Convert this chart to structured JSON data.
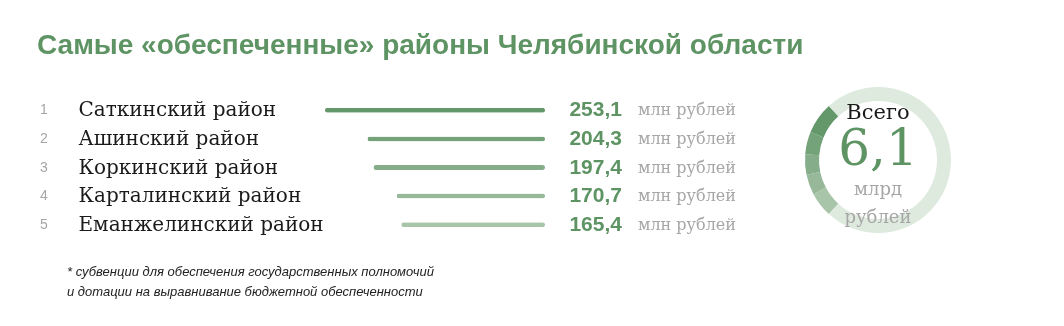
{
  "chart_data": [
    {
      "type": "bar",
      "orientation": "horizontal",
      "title": "Самые «обеспеченные» районы Челябинской области",
      "categories": [
        "Саткинский район",
        "Ашинский район",
        "Коркинский район",
        "Карталинский район",
        "Еманжелинский район"
      ],
      "values": [
        253.1,
        204.3,
        197.4,
        170.7,
        165.4
      ],
      "value_labels": [
        "253,1",
        "204,3",
        "197,4",
        "170,7",
        "165,4"
      ],
      "colors": [
        "#64976a",
        "#74a279",
        "#85ad89",
        "#97b99a",
        "#a8c5aa"
      ],
      "annotations": [
        "1",
        "2",
        "3",
        "4",
        "5",
        "млн рублей",
        "млн рублей",
        "млн рублей",
        "млн рублей",
        "млн рублей",
        "* субвенции для обеспечения государственных полномочий\n  и дотации на выравнивание бюджетной обеспеченности"
      ]
    },
    {
      "type": "donut",
      "categories": [
        null,
        null,
        null,
        null,
        null,
        null
      ],
      "values": [
        5.5,
        4.5,
        4.5,
        5,
        7,
        73.5
      ],
      "colors": [
        "#a8c5aa",
        "#97b99a",
        "#85ad89",
        "#74a279",
        "#64976a",
        "#dfeadf"
      ],
      "annotations": [
        "Всего",
        "6,1",
        "млрд",
        "рублей"
      ]
    }
  ]
}
